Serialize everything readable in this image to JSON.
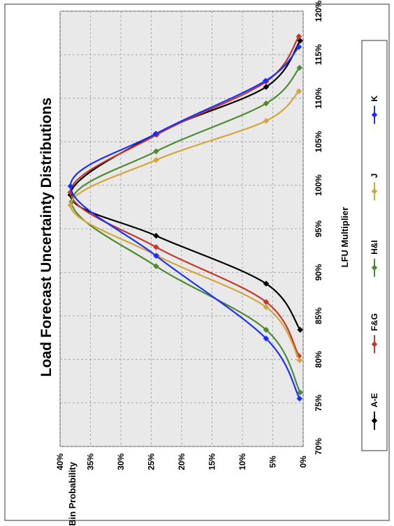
{
  "chart_data": {
    "type": "line",
    "title": "Load Forecast Uncertainty Distributions",
    "xlabel": "LFU Multiplier",
    "ylabel": "Bin Probability",
    "xlim": [
      70,
      120
    ],
    "ylim": [
      0,
      40
    ],
    "x_ticks": [
      "70%",
      "75%",
      "80%",
      "85%",
      "90%",
      "95%",
      "100%",
      "105%",
      "110%",
      "115%",
      "120%"
    ],
    "y_ticks": [
      "0%",
      "5%",
      "10%",
      "15%",
      "20%",
      "25%",
      "30%",
      "35%",
      "40%"
    ],
    "grid": true,
    "orientation": "rotated-90-ccw",
    "legend_position": "bottom",
    "series": [
      {
        "name": "A-E",
        "color": "#000000",
        "points": [
          [
            83.4,
            0.5
          ],
          [
            88.7,
            6.1
          ],
          [
            94.2,
            24.2
          ],
          [
            98.9,
            38.3
          ],
          [
            105.9,
            24.2
          ],
          [
            111.3,
            6.1
          ],
          [
            116.6,
            0.5
          ]
        ]
      },
      {
        "name": "F&G",
        "color": "#c0392b",
        "points": [
          [
            80.4,
            0.7
          ],
          [
            86.6,
            6.1
          ],
          [
            92.9,
            24.2
          ],
          [
            99.2,
            38.3
          ],
          [
            105.8,
            24.1
          ],
          [
            111.9,
            6.1
          ],
          [
            117.1,
            0.7
          ]
        ]
      },
      {
        "name": "H&I",
        "color": "#4e8a2f",
        "points": [
          [
            76.2,
            0.5
          ],
          [
            83.4,
            6.1
          ],
          [
            90.7,
            24.2
          ],
          [
            98.1,
            38.1
          ],
          [
            103.9,
            24.2
          ],
          [
            109.4,
            6.1
          ],
          [
            113.5,
            0.6
          ]
        ]
      },
      {
        "name": "J",
        "color": "#d4a63a",
        "points": [
          [
            79.9,
            0.6
          ],
          [
            86.0,
            6.1
          ],
          [
            91.9,
            24.0
          ],
          [
            97.7,
            38.3
          ],
          [
            102.9,
            24.2
          ],
          [
            107.4,
            6.1
          ],
          [
            110.8,
            0.7
          ]
        ]
      },
      {
        "name": "K",
        "color": "#1a2eff",
        "points": [
          [
            75.5,
            0.6
          ],
          [
            82.4,
            6.1
          ],
          [
            91.9,
            24.2
          ],
          [
            99.9,
            38.3
          ],
          [
            105.9,
            24.3
          ],
          [
            112.0,
            6.2
          ],
          [
            115.9,
            0.7
          ]
        ]
      }
    ]
  }
}
